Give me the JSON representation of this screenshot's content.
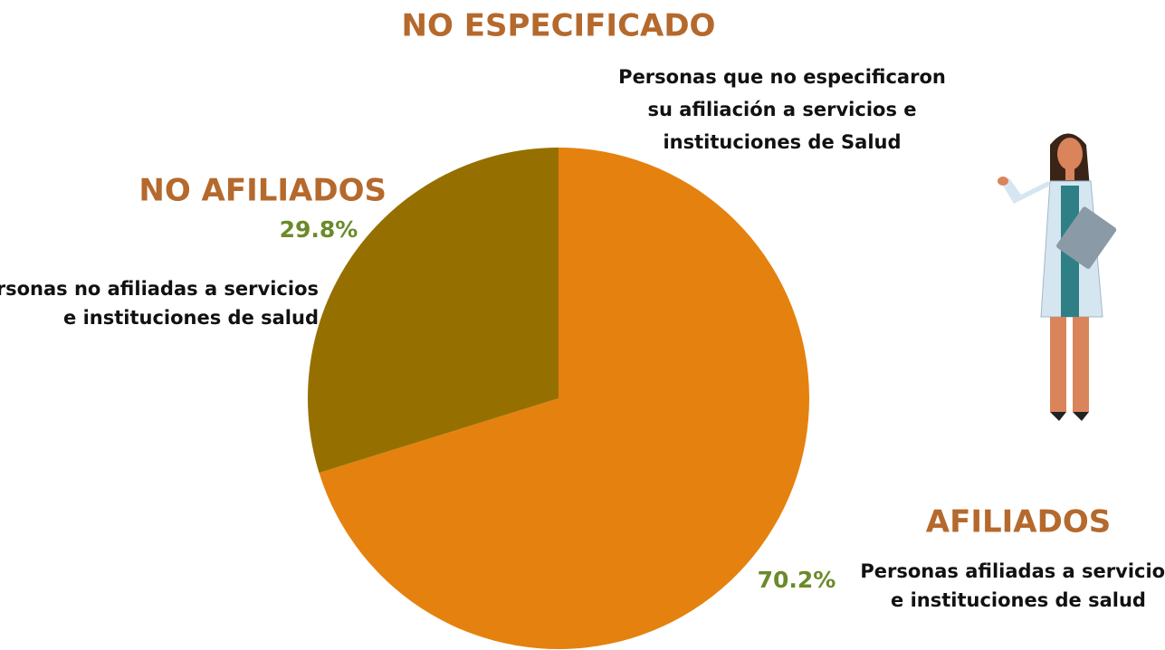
{
  "chart_data": {
    "type": "pie",
    "categories": [
      "AFILIADOS",
      "NO AFILIADOS"
    ],
    "descriptions": [
      [
        "Personas  afiliadas a servicios",
        "e instituciones de salud"
      ],
      [
        "Personas  no afiliadas a servicios",
        "e instituciones de salud"
      ]
    ],
    "values": [
      70.2,
      29.8
    ],
    "value_labels": [
      "70.2%",
      "29.8%"
    ],
    "colors": [
      "#e5810e",
      "#957000"
    ],
    "annotations": [
      {
        "title": "NO ESPECIFICADO",
        "text": [
          "Personas  que no especificaron",
          "su afiliación a servicios  e",
          "instituciones de Salud"
        ]
      }
    ]
  }
}
